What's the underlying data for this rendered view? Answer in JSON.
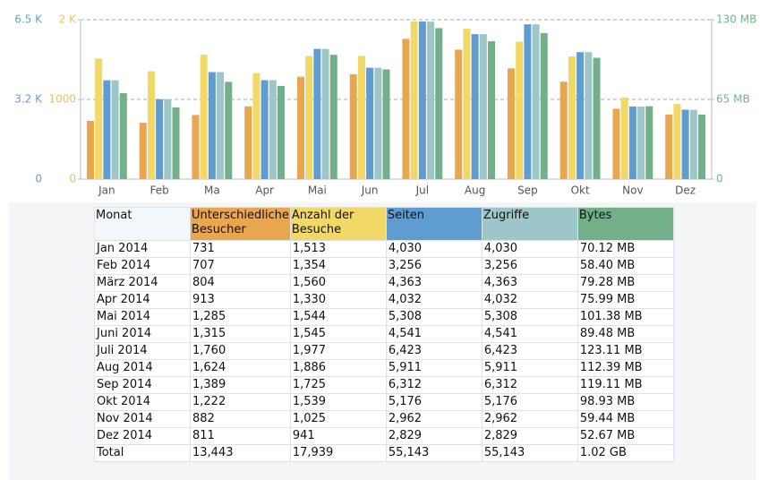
{
  "chart_data": {
    "type": "bar",
    "categories": [
      "Jan",
      "Feb",
      "Ma",
      "Apr",
      "Mai",
      "Jun",
      "Jul",
      "Aug",
      "Sep",
      "Okt",
      "Nov",
      "Dez"
    ],
    "series": [
      {
        "name": "Unterschiedliche Besucher",
        "color": "#e8a64e",
        "axis": "y",
        "values": [
          731,
          707,
          804,
          913,
          1285,
          1315,
          1760,
          1624,
          1389,
          1222,
          882,
          811
        ]
      },
      {
        "name": "Anzahl der Besuche",
        "color": "#f2d866",
        "axis": "y",
        "values": [
          1513,
          1354,
          1560,
          1330,
          1544,
          1545,
          1977,
          1886,
          1725,
          1539,
          1025,
          941
        ]
      },
      {
        "name": "Seiten",
        "color": "#5f9ccf",
        "axis": "y3",
        "values": [
          4030,
          3256,
          4363,
          4032,
          5308,
          4541,
          6423,
          5911,
          6312,
          5176,
          2962,
          2829
        ]
      },
      {
        "name": "Zugriffe",
        "color": "#9cc6c8",
        "axis": "y3",
        "values": [
          4030,
          3256,
          4363,
          4032,
          5308,
          4541,
          6423,
          5911,
          6312,
          5176,
          2962,
          2829
        ]
      },
      {
        "name": "Bytes",
        "color": "#72b08a",
        "axis": "y2",
        "values": [
          70.12,
          58.4,
          79.28,
          75.99,
          101.38,
          89.48,
          123.11,
          112.39,
          119.11,
          98.93,
          59.44,
          52.67
        ]
      }
    ],
    "ylim": [
      0,
      2000
    ],
    "yticks": [
      0,
      1000,
      {
        "value": 2000,
        "label": "2 K"
      }
    ],
    "ycolor": "#f0c060",
    "y3lim": [
      0,
      6500
    ],
    "y3ticks": [
      0,
      {
        "value": 3250,
        "label": "3.2 K"
      },
      {
        "value": 6500,
        "label": "6.5 K"
      }
    ],
    "y3color": "#6a9fd0",
    "y2lim": [
      0,
      130
    ],
    "y2ticks": [
      0,
      {
        "value": 65,
        "label": "65 MB"
      },
      {
        "value": 130,
        "label": "130 MB"
      }
    ],
    "y2color": "#6cbb8a",
    "grid": true
  },
  "table": {
    "header": [
      "Monat",
      "Unterschiedliche Besucher",
      "Anzahl der Besuche",
      "Seiten",
      "Zugriffe",
      "Bytes"
    ],
    "header_colors": [
      "#f2f7fb",
      "#e8a64e",
      "#f2d866",
      "#5f9ccf",
      "#9cc6c8",
      "#72b08a"
    ],
    "rows": [
      [
        "Jan 2014",
        "731",
        "1,513",
        "4,030",
        "4,030",
        "70.12 MB"
      ],
      [
        "Feb 2014",
        "707",
        "1,354",
        "3,256",
        "3,256",
        "58.40 MB"
      ],
      [
        "März 2014",
        "804",
        "1,560",
        "4,363",
        "4,363",
        "79.28 MB"
      ],
      [
        "Apr 2014",
        "913",
        "1,330",
        "4,032",
        "4,032",
        "75.99 MB"
      ],
      [
        "Mai 2014",
        "1,285",
        "1,544",
        "5,308",
        "5,308",
        "101.38 MB"
      ],
      [
        "Juni 2014",
        "1,315",
        "1,545",
        "4,541",
        "4,541",
        "89.48 MB"
      ],
      [
        "Juli 2014",
        "1,760",
        "1,977",
        "6,423",
        "6,423",
        "123.11 MB"
      ],
      [
        "Aug 2014",
        "1,624",
        "1,886",
        "5,911",
        "5,911",
        "112.39 MB"
      ],
      [
        "Sep 2014",
        "1,389",
        "1,725",
        "6,312",
        "6,312",
        "119.11 MB"
      ],
      [
        "Okt 2014",
        "1,222",
        "1,539",
        "5,176",
        "5,176",
        "98.93 MB"
      ],
      [
        "Nov 2014",
        "882",
        "1,025",
        "2,962",
        "2,962",
        "59.44 MB"
      ],
      [
        "Dez 2014",
        "811",
        "941",
        "2,829",
        "2,829",
        "52.67 MB"
      ],
      [
        "Total",
        "13,443",
        "17,939",
        "55,143",
        "55,143",
        "1.02 GB"
      ]
    ]
  }
}
